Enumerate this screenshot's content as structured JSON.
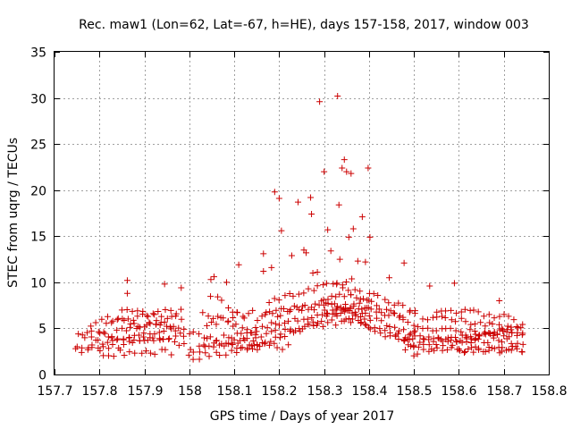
{
  "chart_data": {
    "type": "scatter",
    "title": "Rec. maw1 (Lon=62, Lat=-67, h=HE), days 157-158, 2017, window 003",
    "xlabel": "GPS time / Days of year 2017",
    "ylabel": "STEC from uqrg / TECUs",
    "xlim": [
      157.7,
      158.8
    ],
    "ylim": [
      0,
      35
    ],
    "xticks": [
      157.7,
      157.8,
      157.9,
      158,
      158.1,
      158.2,
      158.3,
      158.4,
      158.5,
      158.6,
      158.7,
      158.8
    ],
    "xtick_labels": [
      "157.7",
      "157.8",
      "157.9",
      "158",
      "158.1",
      "158.2",
      "158.3",
      "158.4",
      "158.5",
      "158.6",
      "158.7",
      "158.8"
    ],
    "yticks": [
      0,
      5,
      10,
      15,
      20,
      25,
      30,
      35
    ],
    "ytick_labels": [
      "0",
      "5",
      "10",
      "15",
      "20",
      "25",
      "30",
      "35"
    ],
    "grid": true,
    "marker": "+",
    "color": "#cc0000",
    "outliers": [
      {
        "x": 157.862,
        "y": 10.2
      },
      {
        "x": 157.862,
        "y": 8.8
      },
      {
        "x": 157.945,
        "y": 9.8
      },
      {
        "x": 157.982,
        "y": 9.4
      },
      {
        "x": 158.048,
        "y": 10.3
      },
      {
        "x": 158.055,
        "y": 10.6
      },
      {
        "x": 158.083,
        "y": 10.0
      },
      {
        "x": 158.11,
        "y": 11.9
      },
      {
        "x": 158.165,
        "y": 13.1
      },
      {
        "x": 158.165,
        "y": 11.2
      },
      {
        "x": 158.183,
        "y": 11.6
      },
      {
        "x": 158.19,
        "y": 19.8
      },
      {
        "x": 158.2,
        "y": 19.1
      },
      {
        "x": 158.205,
        "y": 15.6
      },
      {
        "x": 158.228,
        "y": 12.9
      },
      {
        "x": 158.242,
        "y": 18.7
      },
      {
        "x": 158.255,
        "y": 13.5
      },
      {
        "x": 158.26,
        "y": 13.2
      },
      {
        "x": 158.27,
        "y": 19.2
      },
      {
        "x": 158.272,
        "y": 17.4
      },
      {
        "x": 158.275,
        "y": 11.0
      },
      {
        "x": 158.285,
        "y": 11.1
      },
      {
        "x": 158.29,
        "y": 29.6
      },
      {
        "x": 158.3,
        "y": 22.0
      },
      {
        "x": 158.308,
        "y": 15.7
      },
      {
        "x": 158.315,
        "y": 13.4
      },
      {
        "x": 158.33,
        "y": 30.2
      },
      {
        "x": 158.333,
        "y": 18.4
      },
      {
        "x": 158.335,
        "y": 12.5
      },
      {
        "x": 158.34,
        "y": 22.4
      },
      {
        "x": 158.345,
        "y": 23.3
      },
      {
        "x": 158.35,
        "y": 22.0
      },
      {
        "x": 158.355,
        "y": 14.9
      },
      {
        "x": 158.36,
        "y": 21.8
      },
      {
        "x": 158.365,
        "y": 15.8
      },
      {
        "x": 158.375,
        "y": 12.3
      },
      {
        "x": 158.385,
        "y": 17.1
      },
      {
        "x": 158.392,
        "y": 12.2
      },
      {
        "x": 158.398,
        "y": 22.4
      },
      {
        "x": 158.402,
        "y": 14.9
      },
      {
        "x": 158.445,
        "y": 10.5
      },
      {
        "x": 158.478,
        "y": 12.1
      },
      {
        "x": 158.535,
        "y": 9.6
      },
      {
        "x": 158.59,
        "y": 9.9
      },
      {
        "x": 158.69,
        "y": 8.0
      }
    ],
    "point_tracks": [
      {
        "x_start": 157.75,
        "x_end": 157.99,
        "n": 22,
        "y": [
          2.5,
          4.3
        ]
      },
      {
        "x_start": 157.75,
        "x_end": 157.99,
        "n": 22,
        "y": [
          3.0,
          5.2
        ]
      },
      {
        "x_start": 157.75,
        "x_end": 157.99,
        "n": 22,
        "y": [
          4.6,
          3.3
        ]
      },
      {
        "x_start": 157.77,
        "x_end": 157.98,
        "n": 20,
        "y": [
          3.8,
          6.2
        ]
      },
      {
        "x_start": 157.78,
        "x_end": 157.98,
        "n": 18,
        "y": [
          5.5,
          7.0
        ]
      },
      {
        "x_start": 157.8,
        "x_end": 157.96,
        "n": 15,
        "y": [
          2.3,
          2.4
        ]
      },
      {
        "x_start": 157.82,
        "x_end": 157.97,
        "n": 14,
        "y": [
          6.2,
          4.8
        ]
      },
      {
        "x_start": 157.85,
        "x_end": 157.95,
        "n": 10,
        "y": [
          7.0,
          5.9
        ]
      },
      {
        "x_start": 158.0,
        "x_end": 158.14,
        "n": 14,
        "y": [
          2.5,
          3.9
        ]
      },
      {
        "x_start": 158.0,
        "x_end": 158.15,
        "n": 14,
        "y": [
          1.8,
          3.0
        ]
      },
      {
        "x_start": 158.0,
        "x_end": 158.15,
        "n": 14,
        "y": [
          4.7,
          2.4
        ]
      },
      {
        "x_start": 158.02,
        "x_end": 158.15,
        "n": 13,
        "y": [
          3.3,
          5.0
        ]
      },
      {
        "x_start": 158.03,
        "x_end": 158.15,
        "n": 12,
        "y": [
          6.5,
          4.6
        ]
      },
      {
        "x_start": 158.04,
        "x_end": 158.14,
        "n": 10,
        "y": [
          5.4,
          7.0
        ]
      },
      {
        "x_start": 158.05,
        "x_end": 158.12,
        "n": 7,
        "y": [
          8.7,
          6.0
        ]
      },
      {
        "x_start": 158.1,
        "x_end": 158.22,
        "n": 12,
        "y": [
          3.5,
          3.0
        ]
      },
      {
        "x_start": 158.15,
        "x_end": 158.4,
        "n": 25,
        "y": [
          3.0,
          8.2
        ]
      },
      {
        "x_start": 158.15,
        "x_end": 158.4,
        "n": 25,
        "y": [
          4.2,
          6.3
        ]
      },
      {
        "x_start": 158.15,
        "x_end": 158.4,
        "n": 25,
        "y": [
          5.0,
          7.5
        ]
      },
      {
        "x_start": 158.15,
        "x_end": 158.38,
        "n": 22,
        "y": [
          6.0,
          9.0
        ]
      },
      {
        "x_start": 158.17,
        "x_end": 158.35,
        "n": 18,
        "y": [
          7.0,
          7.6
        ]
      },
      {
        "x_start": 158.18,
        "x_end": 158.36,
        "n": 18,
        "y": [
          8.0,
          10.2
        ]
      },
      {
        "x_start": 158.3,
        "x_end": 158.5,
        "n": 20,
        "y": [
          6.9,
          3.3
        ]
      },
      {
        "x_start": 158.3,
        "x_end": 158.5,
        "n": 20,
        "y": [
          8.0,
          4.5
        ]
      },
      {
        "x_start": 158.33,
        "x_end": 158.5,
        "n": 17,
        "y": [
          9.5,
          5.4
        ]
      },
      {
        "x_start": 158.35,
        "x_end": 158.5,
        "n": 15,
        "y": [
          7.2,
          6.4
        ]
      },
      {
        "x_start": 158.38,
        "x_end": 158.5,
        "n": 12,
        "y": [
          5.5,
          3.9
        ]
      },
      {
        "x_start": 158.4,
        "x_end": 158.5,
        "n": 10,
        "y": [
          8.7,
          7.1
        ]
      },
      {
        "x_start": 158.48,
        "x_end": 158.74,
        "n": 26,
        "y": [
          3.0,
          2.6
        ]
      },
      {
        "x_start": 158.48,
        "x_end": 158.74,
        "n": 26,
        "y": [
          4.0,
          3.5
        ]
      },
      {
        "x_start": 158.48,
        "x_end": 158.74,
        "n": 26,
        "y": [
          3.4,
          4.6
        ]
      },
      {
        "x_start": 158.5,
        "x_end": 158.74,
        "n": 24,
        "y": [
          2.3,
          5.4
        ]
      },
      {
        "x_start": 158.5,
        "x_end": 158.74,
        "n": 24,
        "y": [
          5.0,
          4.2
        ]
      },
      {
        "x_start": 158.52,
        "x_end": 158.74,
        "n": 22,
        "y": [
          6.2,
          5.0
        ]
      },
      {
        "x_start": 158.55,
        "x_end": 158.72,
        "n": 17,
        "y": [
          7.1,
          6.2
        ]
      },
      {
        "x_start": 158.6,
        "x_end": 158.74,
        "n": 14,
        "y": [
          2.5,
          2.8
        ]
      }
    ]
  }
}
